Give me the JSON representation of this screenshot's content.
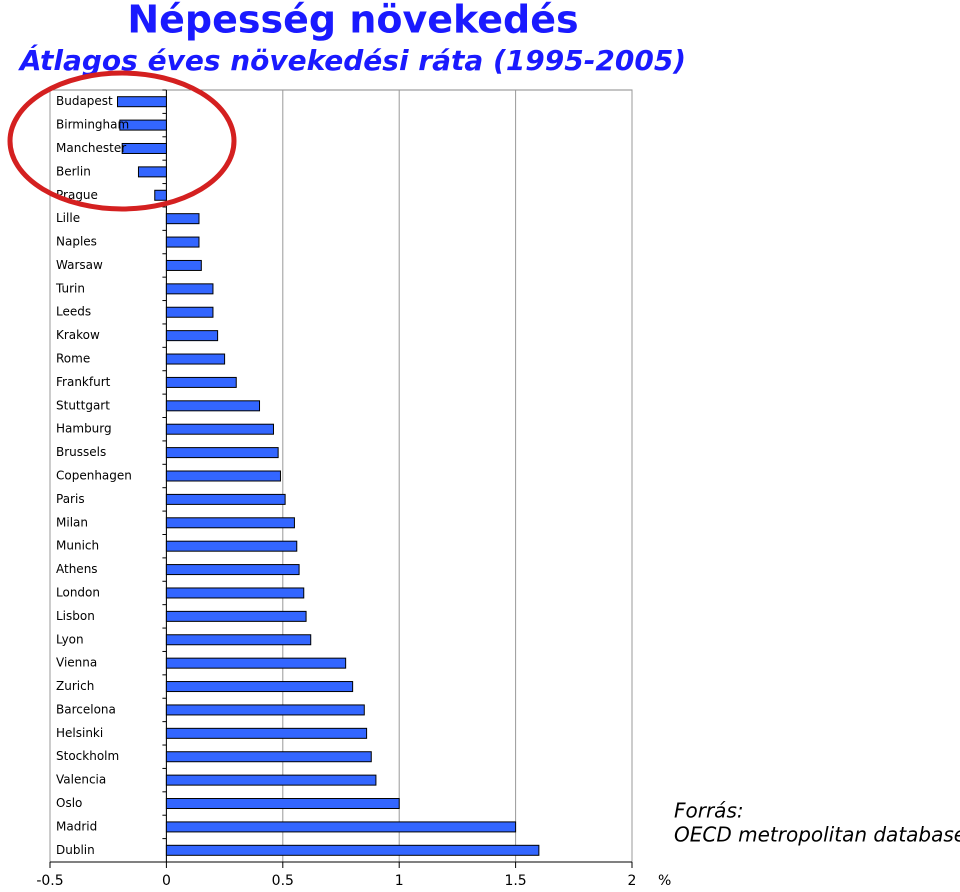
{
  "chart_data": {
    "type": "barh",
    "title": "Népesség növekedés",
    "subtitle": "Átlagos éves növekedési ráta (1995-2005)",
    "x_label": "%",
    "source": [
      "Forrás:",
      "OECD metropolitan database"
    ],
    "color": "#3366ff",
    "grid": true,
    "categories": [
      "Budapest",
      "Birmingham",
      "Manchester",
      "Berlin",
      "Prague",
      "Lille",
      "Naples",
      "Warsaw",
      "Turin",
      "Leeds",
      "Krakow",
      "Rome",
      "Frankfurt",
      "Stuttgart",
      "Hamburg",
      "Brussels",
      "Copenhagen",
      "Paris",
      "Milan",
      "Munich",
      "Athens",
      "London",
      "Lisbon",
      "Lyon",
      "Vienna",
      "Zurich",
      "Barcelona",
      "Helsinki",
      "Stockholm",
      "Valencia",
      "Oslo",
      "Madrid",
      "Dublin"
    ],
    "values": [
      -0.21,
      -0.2,
      -0.19,
      -0.12,
      -0.05,
      0.14,
      0.14,
      0.15,
      0.2,
      0.2,
      0.22,
      0.25,
      0.3,
      0.4,
      0.46,
      0.48,
      0.49,
      0.51,
      0.55,
      0.56,
      0.57,
      0.59,
      0.6,
      0.62,
      0.77,
      0.8,
      0.85,
      0.86,
      0.88,
      0.9,
      1.0,
      1.5,
      1.6
    ],
    "xlim": [
      -0.5,
      2
    ],
    "xticks": [
      -0.5,
      0,
      0.5,
      1,
      1.5,
      2
    ]
  }
}
